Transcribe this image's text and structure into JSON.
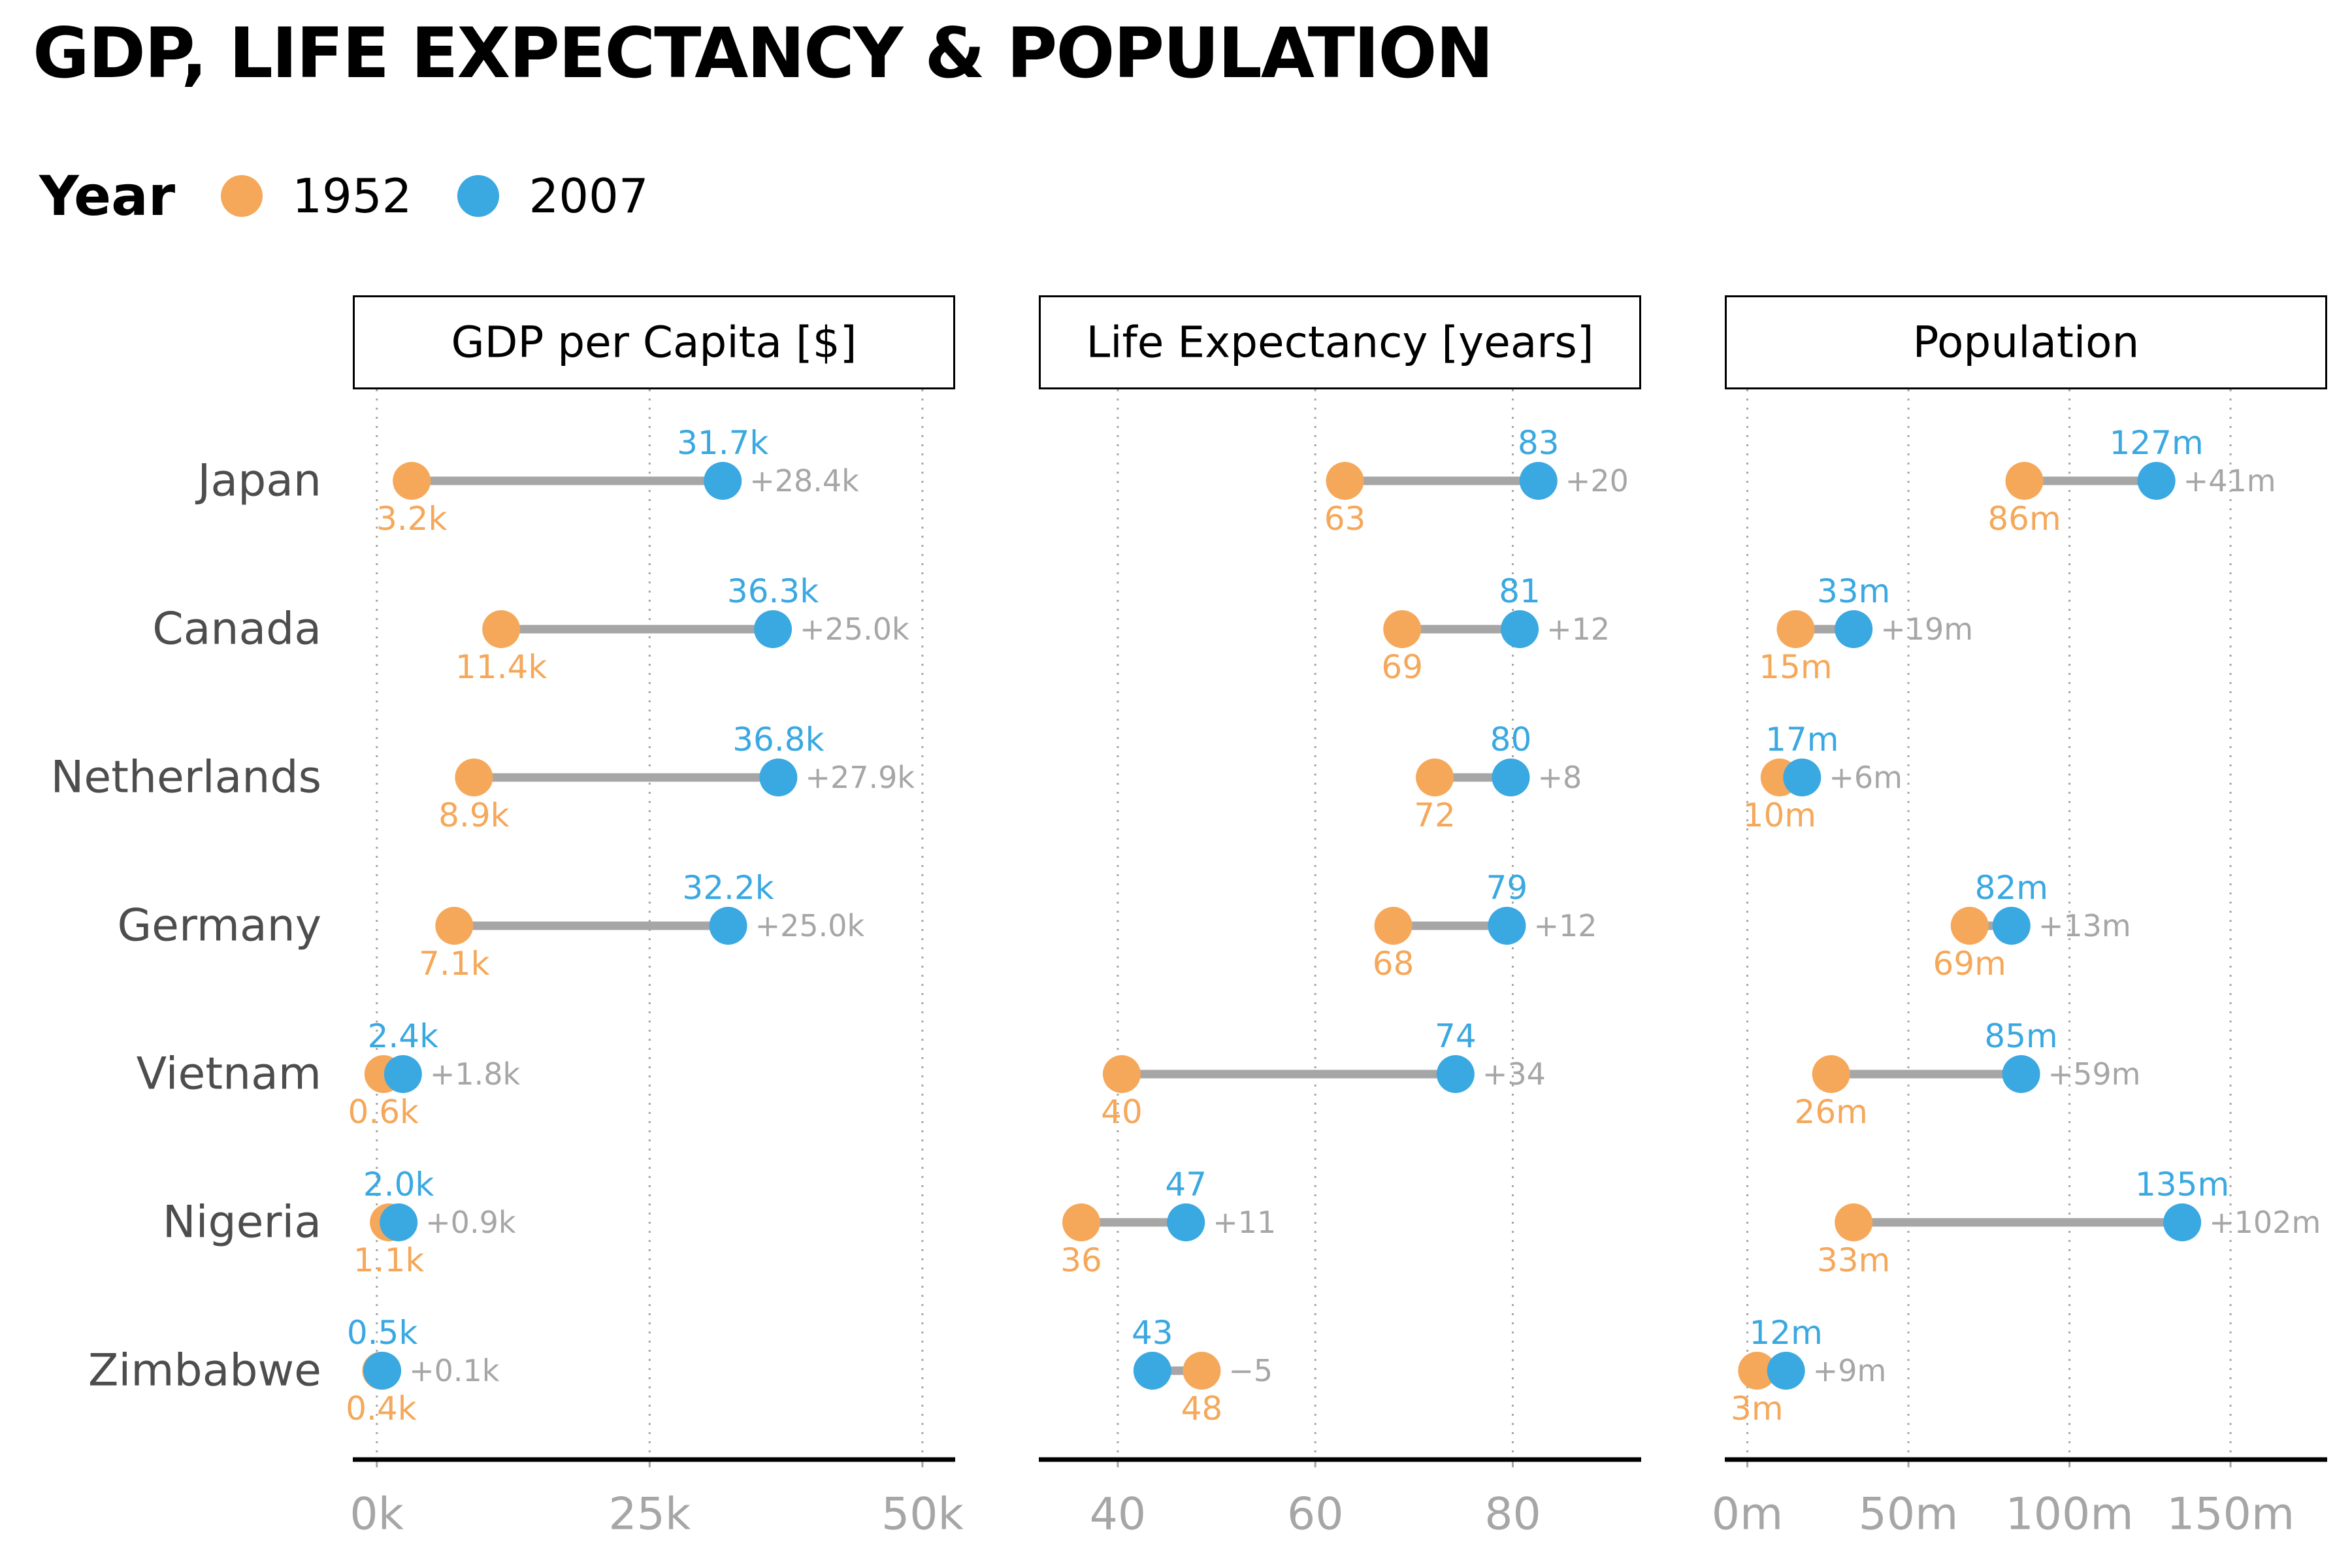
{
  "title": "GDP, LIFE EXPECTANCY & POPULATION",
  "legend": {
    "title": "Year",
    "items": [
      {
        "label": "1952",
        "color": "#F5A85A"
      },
      {
        "label": "2007",
        "color": "#3AA8E1"
      }
    ]
  },
  "colors": {
    "y1952": "#F5A85A",
    "y2007": "#3AA8E1",
    "segment": "#A6A6A6",
    "diff_text": "#A6A6A6",
    "country_text": "#4D4D4D",
    "axis_tick_text": "#A6A6A6"
  },
  "chart_data": {
    "type": "dumbbell",
    "countries": [
      "Japan",
      "Canada",
      "Netherlands",
      "Germany",
      "Vietnam",
      "Nigeria",
      "Zimbabwe"
    ],
    "panels": [
      {
        "title": "GDP per Capita [$]",
        "xlim": [
          -2.2,
          53
        ],
        "ticks": [
          0,
          25,
          50
        ],
        "tick_labels": [
          "0k",
          "25k",
          "50k"
        ],
        "unit": "thousand $",
        "series": [
          {
            "name": "1952",
            "values": [
              3.2,
              11.4,
              8.9,
              7.1,
              0.6,
              1.1,
              0.4
            ],
            "labels": [
              "3.2k",
              "11.4k",
              "8.9k",
              "7.1k",
              "0.6k",
              "1.1k",
              "0.4k"
            ]
          },
          {
            "name": "2007",
            "values": [
              31.7,
              36.3,
              36.8,
              32.2,
              2.4,
              2.0,
              0.5
            ],
            "labels": [
              "31.7k",
              "36.3k",
              "36.8k",
              "32.2k",
              "2.4k",
              "2.0k",
              "0.5k"
            ]
          }
        ],
        "diff_labels": [
          "+28.4k",
          "+25.0k",
          "+27.9k",
          "+25.0k",
          "+1.8k",
          "+0.9k",
          "+0.1k"
        ]
      },
      {
        "title": "Life Expectancy [years]",
        "xlim": [
          32,
          93
        ],
        "ticks": [
          40,
          60,
          80
        ],
        "tick_labels": [
          "40",
          "60",
          "80"
        ],
        "unit": "years",
        "series": [
          {
            "name": "1952",
            "values": [
              63.0,
              68.8,
              72.1,
              67.9,
              40.4,
              36.3,
              48.5
            ],
            "labels": [
              "63",
              "69",
              "72",
              "68",
              "40",
              "36",
              "48"
            ]
          },
          {
            "name": "2007",
            "values": [
              82.6,
              80.7,
              79.8,
              79.4,
              74.2,
              46.9,
              43.5
            ],
            "labels": [
              "83",
              "81",
              "80",
              "79",
              "74",
              "47",
              "43"
            ]
          }
        ],
        "diff_labels": [
          "+20",
          "+12",
          "+8",
          "+12",
          "+34",
          "+11",
          "−5"
        ]
      },
      {
        "title": "Population",
        "xlim": [
          -7,
          180
        ],
        "ticks": [
          0,
          50,
          100,
          150
        ],
        "tick_labels": [
          "0m",
          "50m",
          "100m",
          "150m"
        ],
        "unit": "million",
        "series": [
          {
            "name": "1952",
            "values": [
              86,
              15,
              10,
              69,
              26,
              33,
              3
            ],
            "labels": [
              "86m",
              "15m",
              "10m",
              "69m",
              "26m",
              "33m",
              "3m"
            ]
          },
          {
            "name": "2007",
            "values": [
              127,
              33,
              17,
              82,
              85,
              135,
              12
            ],
            "labels": [
              "127m",
              "33m",
              "17m",
              "82m",
              "85m",
              "135m",
              "12m"
            ]
          }
        ],
        "diff_labels": [
          "+41m",
          "+19m",
          "+6m",
          "+13m",
          "+59m",
          "+102m",
          "+9m"
        ]
      }
    ]
  }
}
